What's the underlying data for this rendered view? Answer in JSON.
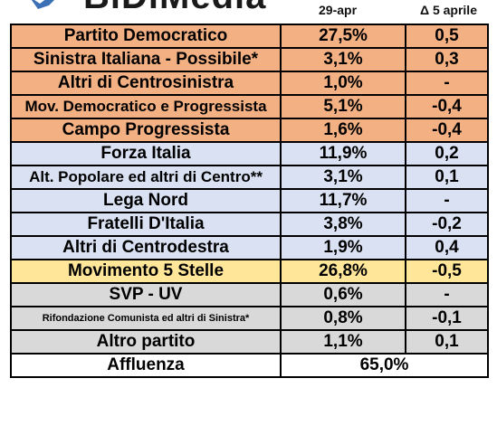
{
  "header": {
    "brand": "BiDiMedia",
    "date_label": "29-apr",
    "delta_label": "Δ 5 aprile"
  },
  "rows": [
    {
      "party": "Partito Democratico",
      "value": "27,5%",
      "delta": "0,5",
      "color": "#f3b083"
    },
    {
      "party": "Sinistra Italiana - Possibile*",
      "value": "3,1%",
      "delta": "0,3",
      "color": "#f3b083"
    },
    {
      "party": "Altri di Centrosinistra",
      "value": "1,0%",
      "delta": "-",
      "color": "#f3b083"
    },
    {
      "party": "Mov. Democratico e Progressista",
      "value": "5,1%",
      "delta": "-0,4",
      "color": "#f3b083"
    },
    {
      "party": "Campo Progressista",
      "value": "1,6%",
      "delta": "-0,4",
      "color": "#f3b083"
    },
    {
      "party": "Forza Italia",
      "value": "11,9%",
      "delta": "0,2",
      "color": "#d9e1f2"
    },
    {
      "party": "Alt. Popolare ed altri di Centro**",
      "value": "3,1%",
      "delta": "0,1",
      "color": "#d9e1f2"
    },
    {
      "party": "Lega Nord",
      "value": "11,7%",
      "delta": "-",
      "color": "#d9e1f2"
    },
    {
      "party": "Fratelli D'Italia",
      "value": "3,8%",
      "delta": "-0,2",
      "color": "#d9e1f2"
    },
    {
      "party": "Altri di Centrodestra",
      "value": "1,9%",
      "delta": "0,4",
      "color": "#d9e1f2"
    },
    {
      "party": "Movimento 5 Stelle",
      "value": "26,8%",
      "delta": "-0,5",
      "color": "#ffe699"
    },
    {
      "party": "SVP - UV",
      "value": "0,6%",
      "delta": "-",
      "color": "#d9d9d9"
    },
    {
      "party": "Rifondazione Comunista ed altri di Sinistra*",
      "value": "0,8%",
      "delta": "-0,1",
      "color": "#d9d9d9"
    },
    {
      "party": "Altro partito",
      "value": "1,1%",
      "delta": "0,1",
      "color": "#d9d9d9"
    }
  ],
  "turnout": {
    "label": "Affluenza",
    "value": "65,0%"
  }
}
